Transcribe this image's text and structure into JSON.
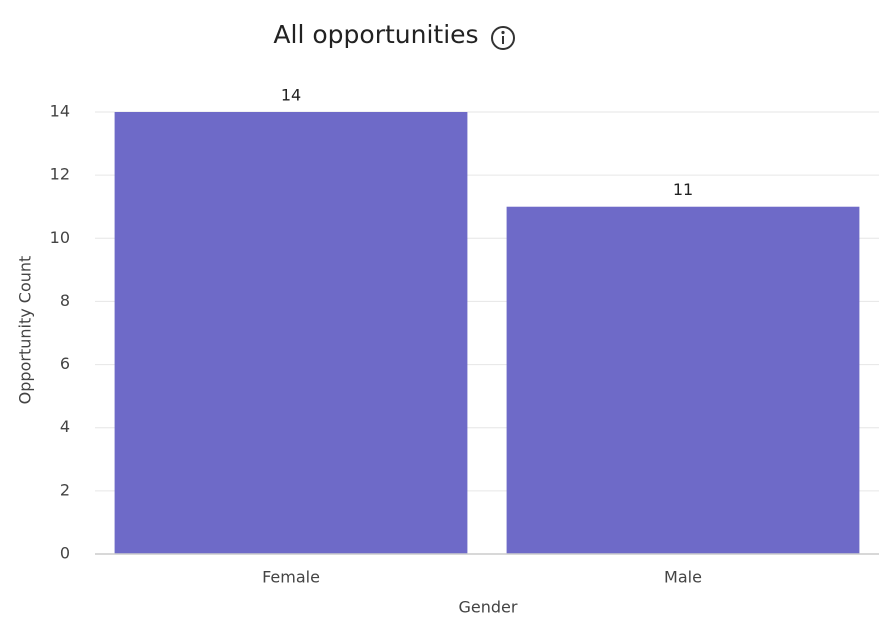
{
  "chart_data": {
    "type": "bar",
    "title": "All opportunities",
    "categories": [
      "Female",
      "Male"
    ],
    "values": [
      14,
      11
    ],
    "color": "#6e6ac8",
    "x_label": "Gender",
    "y_label": "Opportunity Count",
    "ylim": [
      0,
      14
    ],
    "yticks": [
      0,
      2,
      4,
      6,
      8,
      10,
      12,
      14
    ],
    "grid": true
  }
}
